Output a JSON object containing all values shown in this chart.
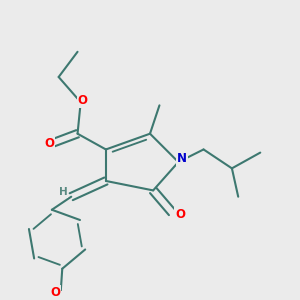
{
  "background_color": "#ebebeb",
  "bond_color": "#3d7870",
  "bond_width": 1.5,
  "atom_colors": {
    "O": "#ff0000",
    "N": "#0000cc",
    "H": "#5a8a82"
  },
  "font_size_atom": 8.5,
  "font_size_H": 7.5,
  "dbo": 0.014
}
